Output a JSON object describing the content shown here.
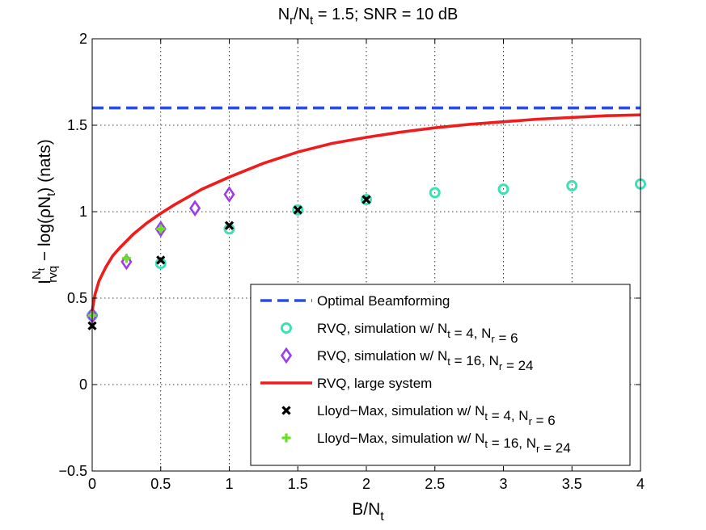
{
  "chart_data": {
    "type": "line",
    "title": {
      "main": "N",
      "sub1": "r",
      "mid": "/N",
      "sub2": "t",
      "rest": " = 1.5; SNR = 10 dB"
    },
    "xlabel": {
      "main": "B/N",
      "sub": "t"
    },
    "ylabel": {
      "main": "I",
      "sup": "N",
      "supsub": "t",
      "sub": "rvq",
      "rest": " − log(ρN",
      "restsub": "t",
      "end": ")  (nats)"
    },
    "xlim": [
      0,
      4
    ],
    "ylim": [
      -0.5,
      2
    ],
    "xticks": [
      "0",
      "0.5",
      "1",
      "1.5",
      "2",
      "2.5",
      "3",
      "3.5",
      "4"
    ],
    "yticks": [
      "−0.5",
      "0",
      "0.5",
      "1",
      "1.5",
      "2"
    ],
    "grid": true,
    "legend_position": "lower-right",
    "series": [
      {
        "name": "Optimal Beamforming",
        "style": "dashed-line",
        "color": "#2a4de0",
        "x": [
          0,
          4
        ],
        "y": [
          1.6,
          1.6
        ],
        "legend": {
          "parts": [
            {
              "t": "Optimal Beamforming"
            }
          ]
        }
      },
      {
        "name": "RVQ, simulation w/ Nt = 4, Nr = 6",
        "style": "circle",
        "color": "#3ee0b8",
        "x": [
          0,
          0.5,
          1,
          1.5,
          2,
          2.5,
          3,
          3.5,
          4
        ],
        "y": [
          0.4,
          0.7,
          0.9,
          1.01,
          1.07,
          1.11,
          1.13,
          1.15,
          1.16
        ],
        "legend": {
          "parts": [
            {
              "t": "RVQ, simulation w/ N"
            },
            {
              "s": "t"
            },
            {
              "t": " = 4, N"
            },
            {
              "s": "r"
            },
            {
              "t": " = 6"
            }
          ]
        }
      },
      {
        "name": "RVQ, simulation w/ Nt = 16, Nr = 24",
        "style": "diamond",
        "color": "#9a3de8",
        "x": [
          0,
          0.25,
          0.5,
          0.75,
          1
        ],
        "y": [
          0.4,
          0.71,
          0.9,
          1.02,
          1.1
        ],
        "legend": {
          "parts": [
            {
              "t": "RVQ, simulation w/ N"
            },
            {
              "s": "t"
            },
            {
              "t": " = 16, N"
            },
            {
              "s": "r"
            },
            {
              "t": " = 24"
            }
          ]
        }
      },
      {
        "name": "RVQ, large system",
        "style": "solid-line",
        "color": "#ee1c1c",
        "x": [
          0,
          0.005,
          0.02,
          0.05,
          0.1,
          0.15,
          0.2,
          0.3,
          0.4,
          0.5,
          0.6,
          0.7,
          0.8,
          0.9,
          1,
          1.25,
          1.5,
          1.75,
          2,
          2.25,
          2.5,
          2.75,
          3,
          3.25,
          3.5,
          3.75,
          4
        ],
        "y": [
          0.4,
          0.45,
          0.52,
          0.6,
          0.68,
          0.745,
          0.79,
          0.87,
          0.935,
          0.99,
          1.04,
          1.085,
          1.13,
          1.165,
          1.2,
          1.28,
          1.345,
          1.395,
          1.43,
          1.46,
          1.485,
          1.505,
          1.52,
          1.535,
          1.545,
          1.555,
          1.56
        ],
        "legend": {
          "parts": [
            {
              "t": "RVQ, large system"
            }
          ]
        }
      },
      {
        "name": "Lloyd-Max, simulation w/ Nt = 4, Nr = 6",
        "style": "x-mark",
        "color": "#000000",
        "x": [
          0,
          0.5,
          1,
          1.5,
          2
        ],
        "y": [
          0.34,
          0.72,
          0.92,
          1.01,
          1.07
        ],
        "legend": {
          "parts": [
            {
              "t": "Lloyd−Max, simulation w/ N"
            },
            {
              "s": "t"
            },
            {
              "t": " = 4, N"
            },
            {
              "s": "r"
            },
            {
              "t": " = 6"
            }
          ]
        }
      },
      {
        "name": "Lloyd-Max, simulation w/ Nt = 16, Nr = 24",
        "style": "plus",
        "color": "#66e020",
        "x": [
          0,
          0.25,
          0.5
        ],
        "y": [
          0.4,
          0.73,
          0.9
        ],
        "legend": {
          "parts": [
            {
              "t": "Lloyd−Max, simulation w/ N"
            },
            {
              "s": "t"
            },
            {
              "t": " = 16, N"
            },
            {
              "s": "r"
            },
            {
              "t": " = 24"
            }
          ]
        }
      }
    ]
  }
}
